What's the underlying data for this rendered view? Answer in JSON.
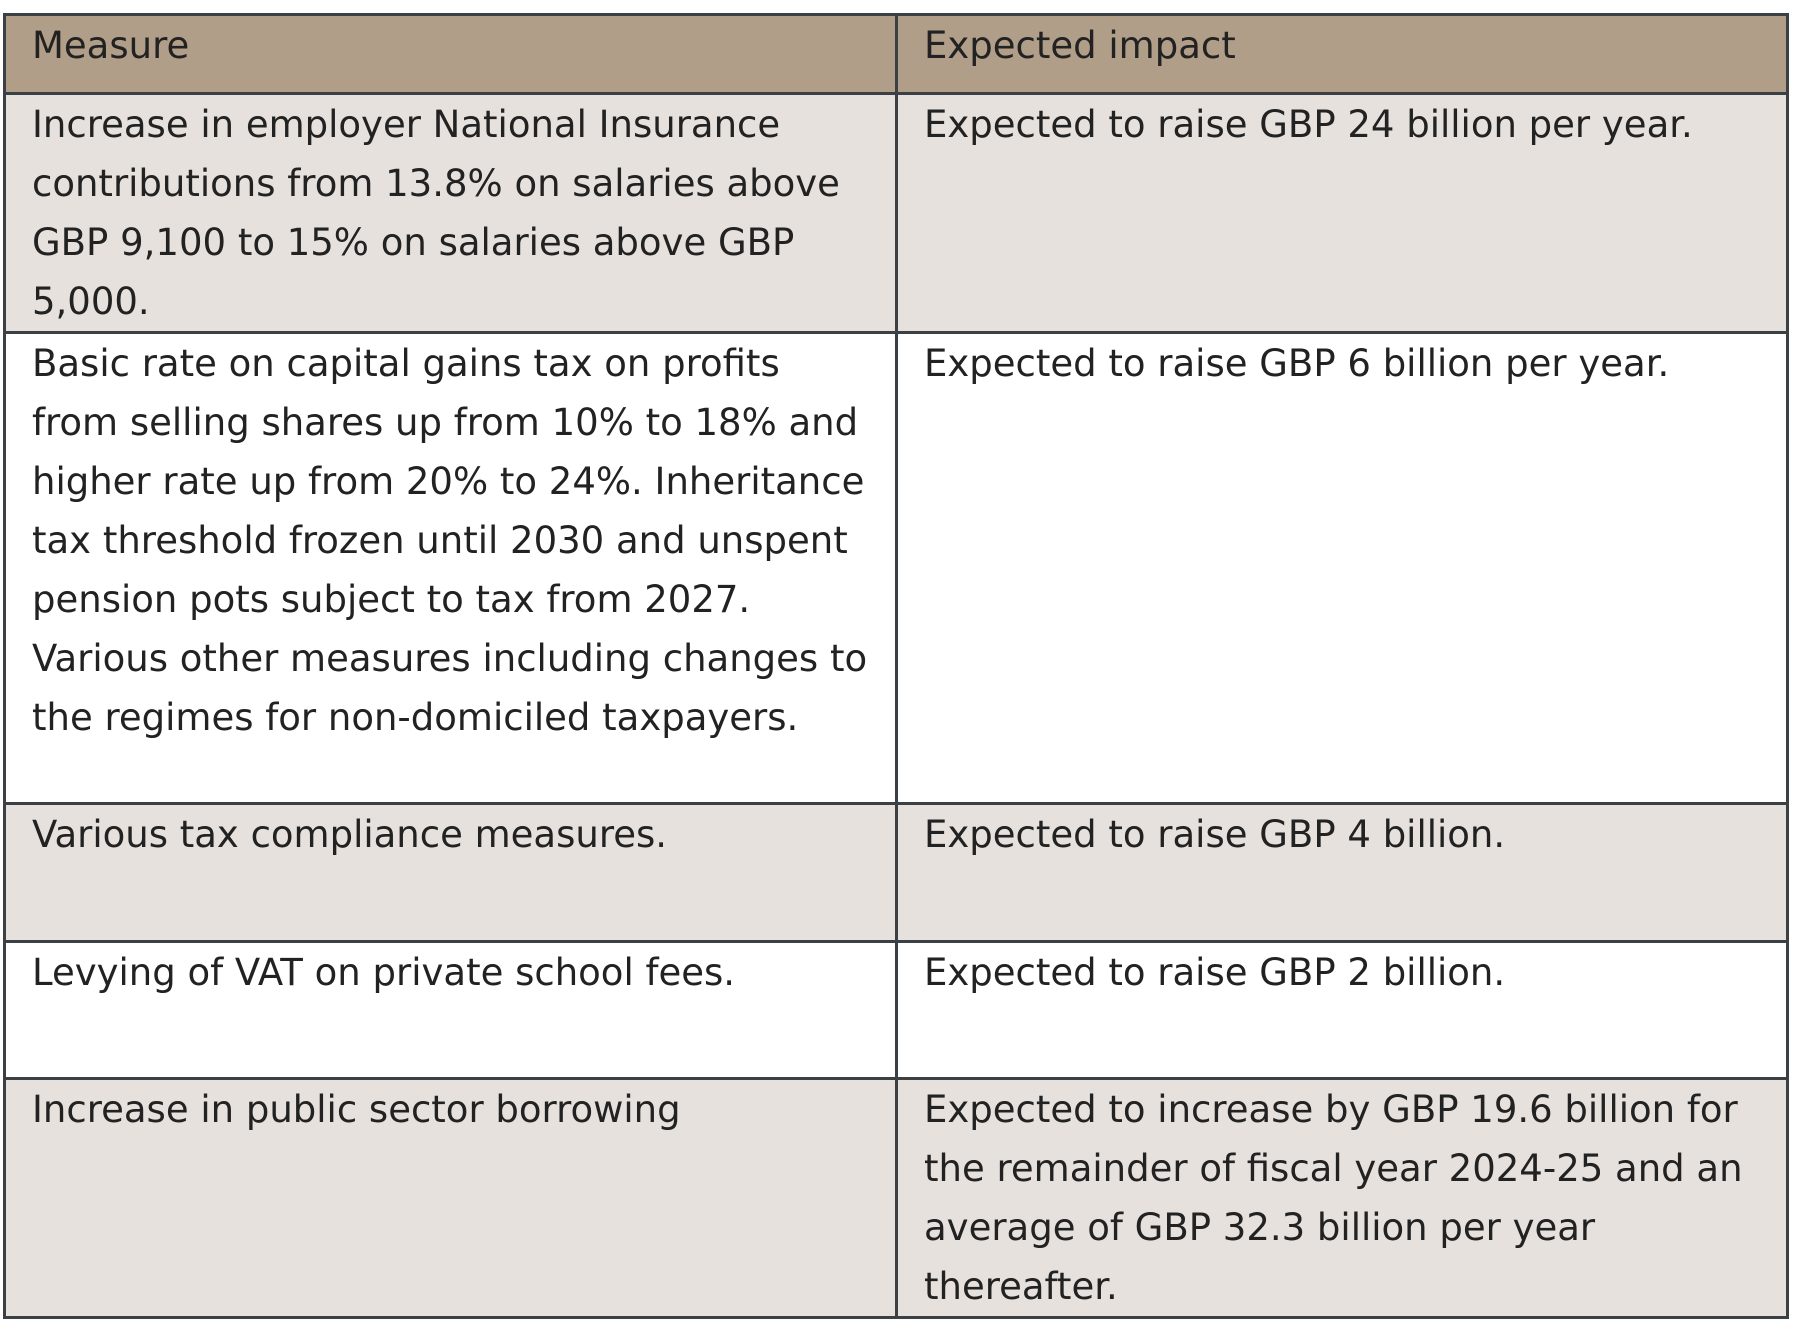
{
  "table": {
    "header": [
      "Measure",
      "Expected impact"
    ],
    "rows": [
      [
        "Increase in employer National Insurance contributions from 13.8% on salaries above GBP 9,100 to 15% on salaries above GBP 5,000.",
        "Expected to raise GBP 24 billion per year."
      ],
      [
        "Basic rate on capital gains tax on profits from selling shares up from 10% to 18% and higher rate up from 20% to 24%. Inheritance tax threshold frozen until 2030 and unspent pension pots subject to tax from 2027. Various other measures including changes to the regimes for non-domiciled taxpayers.",
        "Expected to raise GBP 6 billion per year."
      ],
      [
        "Various tax compliance measures.",
        "Expected to raise GBP 4 billion."
      ],
      [
        "Levying of VAT on private school fees.",
        "Expected to raise GBP 2 billion."
      ],
      [
        "Increase in public sector borrowing",
        "Expected to increase by GBP 19.6 billion for the remainder of fiscal year 2024-25 and an average of GBP 32.3 billion per year thereafter."
      ]
    ]
  }
}
